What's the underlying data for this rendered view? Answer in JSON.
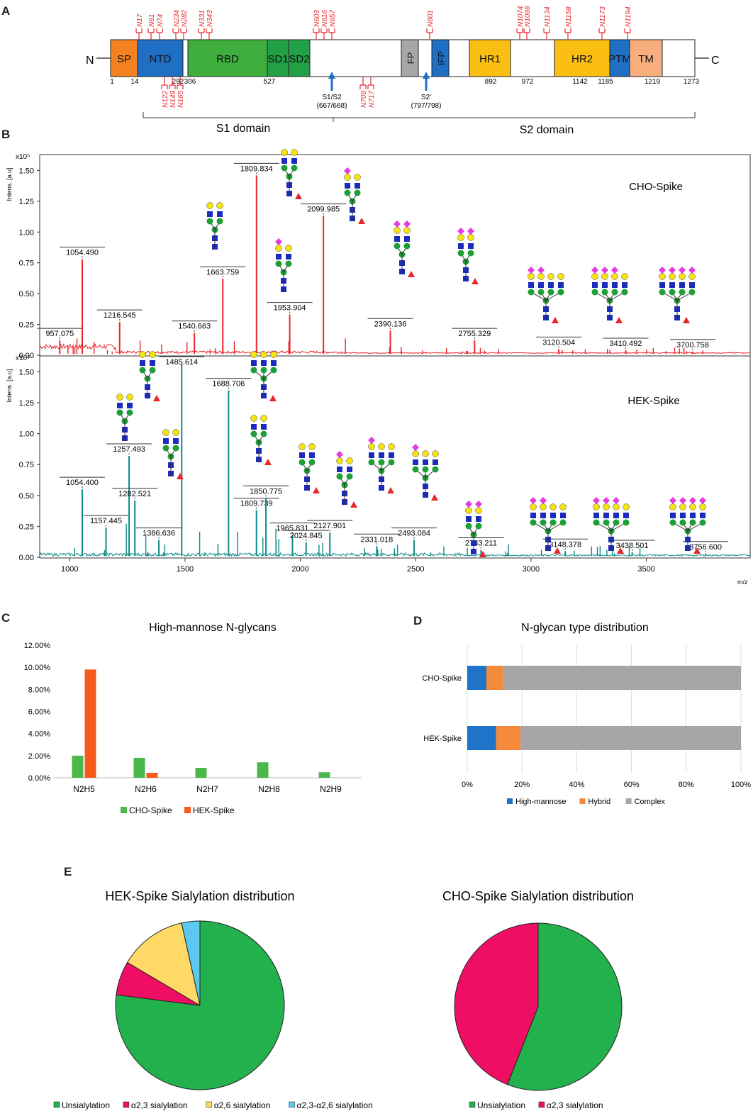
{
  "panels": {
    "a": "A",
    "b": "B",
    "c": "C",
    "d": "D",
    "e": "E"
  },
  "domain_map": {
    "n_term": "N",
    "c_term": "C",
    "domains": [
      {
        "label": "SP",
        "color": "#f58220"
      },
      {
        "label": "NTD",
        "color": "#1f6fc5"
      },
      {
        "label": "RBD",
        "color": "#3fae3f"
      },
      {
        "label": "SD1",
        "color": "#22a045"
      },
      {
        "label": "SD2",
        "color": "#22a045"
      },
      {
        "label": "FP",
        "color": "#a6a6a6"
      },
      {
        "label": "IFP",
        "color": "#1f6fc5"
      },
      {
        "label": "HR1",
        "color": "#fbbf14"
      },
      {
        "label": "HR2",
        "color": "#fbbf14"
      },
      {
        "label": "PTM",
        "color": "#1f6fc5"
      },
      {
        "label": "TM",
        "color": "#f8ad7c"
      }
    ],
    "positions": [
      "1",
      "14",
      "292",
      "306",
      "527",
      "892",
      "972",
      "1142",
      "1185",
      "1219",
      "1273"
    ],
    "sites_top": [
      "N17",
      "N61",
      "N74",
      "N234",
      "N282",
      "N331",
      "N343",
      "N603",
      "N616",
      "N657",
      "N801",
      "N1074",
      "N1098",
      "N1134",
      "N1158",
      "N1173",
      "N1194"
    ],
    "sites_bottom": [
      "N122",
      "N149",
      "N165",
      "N709",
      "N717"
    ],
    "cleavage": [
      {
        "label": "S1/S2",
        "pos": "(667/668)"
      },
      {
        "label": "S2'",
        "pos": "(797/798)"
      }
    ],
    "s1_label": "S1 domain",
    "s2_label": "S2 domain",
    "site_color": "#e8262b",
    "arrow_color": "#1f6fc5"
  },
  "chart_data": [
    {
      "type": "line",
      "title": "CHO-Spike",
      "ylabel": "Intens. [a.u]",
      "y_exponent": "x10⁵",
      "xlabel": "m/z",
      "xlim": [
        870,
        3950
      ],
      "ylim": [
        0,
        1.6
      ],
      "yticks": [
        "0.00",
        "0.25",
        "0.50",
        "0.75",
        "1.00",
        "1.25",
        "1.50"
      ],
      "color": "#e8262b",
      "peaks": [
        {
          "x": 957.075,
          "y": 0.12,
          "label": "957.075"
        },
        {
          "x": 1054.49,
          "y": 0.78,
          "label": "1054.490"
        },
        {
          "x": 1216.545,
          "y": 0.27,
          "label": "1216.545"
        },
        {
          "x": 1540.663,
          "y": 0.18,
          "label": "1540.663"
        },
        {
          "x": 1663.759,
          "y": 0.62,
          "label": "1663.759"
        },
        {
          "x": 1809.834,
          "y": 1.46,
          "label": "1809.834"
        },
        {
          "x": 1953.904,
          "y": 0.33,
          "label": "1953.904"
        },
        {
          "x": 2099.985,
          "y": 1.13,
          "label": "2099.985"
        },
        {
          "x": 2390.136,
          "y": 0.2,
          "label": "2390.136"
        },
        {
          "x": 2755.329,
          "y": 0.12,
          "label": "2755.329"
        },
        {
          "x": 3120.504,
          "y": 0.05,
          "label": "3120.504"
        },
        {
          "x": 3410.492,
          "y": 0.04,
          "label": "3410.492"
        },
        {
          "x": 3700.758,
          "y": 0.03,
          "label": "3700.758"
        }
      ]
    },
    {
      "type": "line",
      "title": "HEK-Spike",
      "ylabel": "Intens. [a.u]",
      "y_exponent": "x10⁵",
      "xlabel": "m/z",
      "xlim": [
        870,
        3950
      ],
      "ylim": [
        0,
        1.6
      ],
      "yticks": [
        "0.00",
        "0.25",
        "0.50",
        "0.75",
        "1.00",
        "1.25",
        "1.50"
      ],
      "xticks": [
        "1000",
        "1500",
        "2000",
        "2500",
        "3000",
        "3500"
      ],
      "color": "#0e8a8a",
      "peaks": [
        {
          "x": 1054.4,
          "y": 0.55,
          "label": "1054.400"
        },
        {
          "x": 1157.445,
          "y": 0.24,
          "label": "1157.445"
        },
        {
          "x": 1257.493,
          "y": 0.82,
          "label": "1257.493"
        },
        {
          "x": 1282.521,
          "y": 0.46,
          "label": "1282.521"
        },
        {
          "x": 1386.636,
          "y": 0.14,
          "label": "1386.636"
        },
        {
          "x": 1485.614,
          "y": 1.56,
          "label": "1485.614"
        },
        {
          "x": 1688.706,
          "y": 1.35,
          "label": "1688.706"
        },
        {
          "x": 1809.739,
          "y": 0.38,
          "label": "1809.739"
        },
        {
          "x": 1850.775,
          "y": 0.48,
          "label": "1850.775"
        },
        {
          "x": 1965.831,
          "y": 0.18,
          "label": "1965.831"
        },
        {
          "x": 2024.845,
          "y": 0.12,
          "label": "2024.845"
        },
        {
          "x": 2127.901,
          "y": 0.2,
          "label": "2127.901"
        },
        {
          "x": 2331.018,
          "y": 0.09,
          "label": "2331.018"
        },
        {
          "x": 2493.084,
          "y": 0.14,
          "label": "2493.084"
        },
        {
          "x": 2783.211,
          "y": 0.06,
          "label": "2783.211"
        },
        {
          "x": 3148.378,
          "y": 0.05,
          "label": "3148.378"
        },
        {
          "x": 3438.501,
          "y": 0.04,
          "label": "3438.501"
        },
        {
          "x": 3756.6,
          "y": 0.03,
          "label": "3756.600"
        }
      ]
    },
    {
      "type": "bar",
      "title": "High-mannose N-glycans",
      "categories": [
        "N2H5",
        "N2H6",
        "N2H7",
        "N2H8",
        "N2H9"
      ],
      "series": [
        {
          "name": "CHO-Spike",
          "color": "#4cb74a",
          "values": [
            2.0,
            1.8,
            0.9,
            1.4,
            0.5
          ]
        },
        {
          "name": "HEK-Spike",
          "color": "#f55b1c",
          "values": [
            9.8,
            0.45,
            0,
            0,
            0
          ]
        }
      ],
      "ylim": [
        0,
        12
      ],
      "yticks": [
        "0.00%",
        "2.00%",
        "4.00%",
        "6.00%",
        "8.00%",
        "10.00%",
        "12.00%"
      ]
    },
    {
      "type": "bar",
      "orientation": "horizontal-stacked",
      "title": "N-glycan type distribution",
      "categories": [
        "CHO-Spike",
        "HEK-Spike"
      ],
      "series": [
        {
          "name": "High-mannose",
          "color": "#1f73c8",
          "values": [
            7,
            10.5
          ]
        },
        {
          "name": "Hybrid",
          "color": "#f58a3a",
          "values": [
            6,
            9
          ]
        },
        {
          "name": "Complex",
          "color": "#a6a6a6",
          "values": [
            87,
            80.5
          ]
        }
      ],
      "xticks": [
        "0%",
        "20%",
        "40%",
        "60%",
        "80%",
        "100%"
      ]
    },
    {
      "type": "pie",
      "title": "HEK-Spike Sialylation distribution",
      "slices": [
        {
          "label": "Unsialylation",
          "value": 77,
          "color": "#22b14c"
        },
        {
          "label": "α2,3 sialylation",
          "value": 6.5,
          "color": "#ee0e63"
        },
        {
          "label": "α2,6 sialylation",
          "value": 13,
          "color": "#ffd966"
        },
        {
          "label": "α2,3-α2,6 sialylation",
          "value": 3.5,
          "color": "#5bc8f0"
        }
      ]
    },
    {
      "type": "pie",
      "title": "CHO-Spike Sialylation distribution",
      "slices": [
        {
          "label": "Unsialylation",
          "value": 56,
          "color": "#22b14c"
        },
        {
          "label": "α2,3 sialylation",
          "value": 44,
          "color": "#ee0e63"
        }
      ]
    }
  ]
}
